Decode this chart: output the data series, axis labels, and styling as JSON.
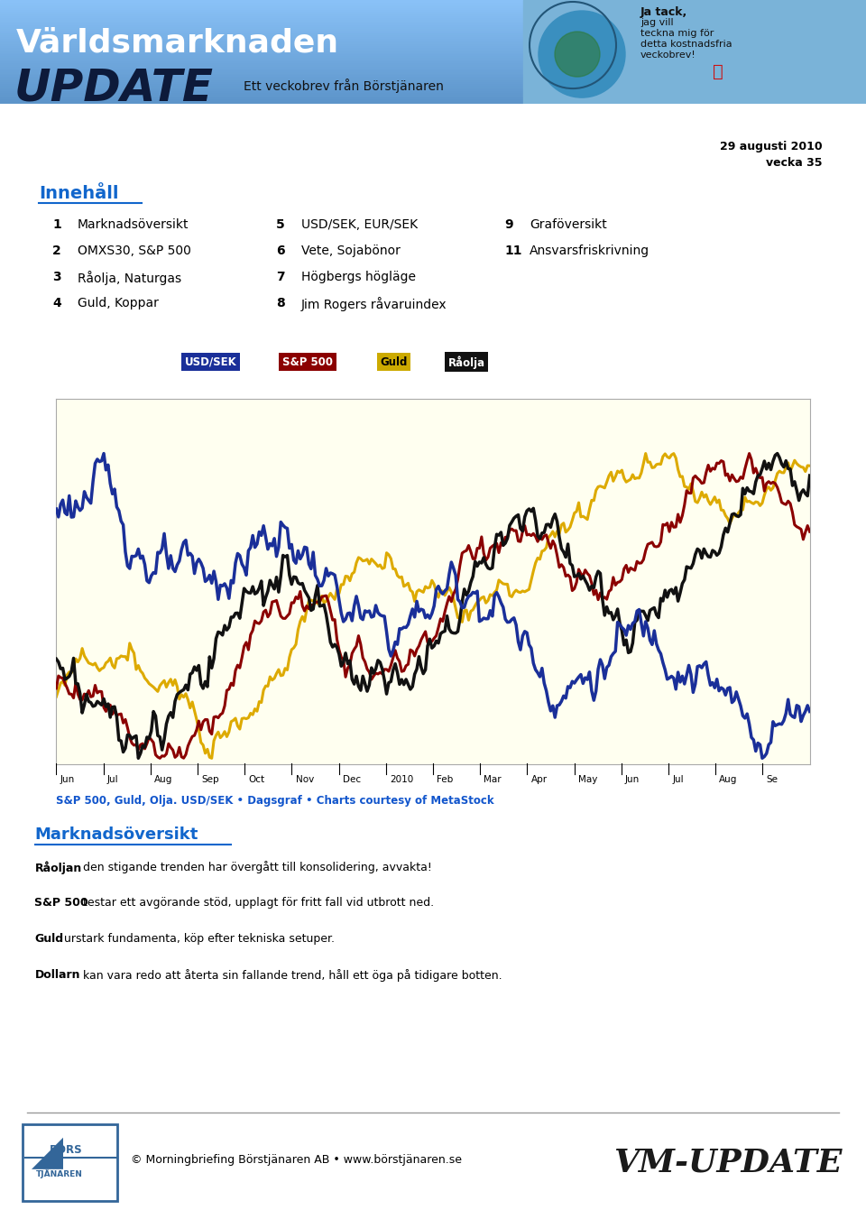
{
  "title_line1": "Världsmarknaden",
  "title_line2": "UPDATE",
  "subtitle": "Ett veckobrev från Börstjänaren",
  "date_text1": "29 augusti 2010",
  "date_text2": "vecka 35",
  "innehall_title": "Innehåll",
  "innehall_col1_nums": [
    "1",
    "2",
    "3",
    "4"
  ],
  "innehall_col1_text": [
    "Marknadsöversikt",
    "OMXS30, S&P 500",
    "Råolja, Naturgas",
    "Guld, Koppar"
  ],
  "innehall_col2_nums": [
    "5",
    "6",
    "7",
    "8"
  ],
  "innehall_col2_text": [
    "USD/SEK, EUR/SEK",
    "Vete, Sojabönor",
    "Högbergs högläge",
    "Jim Rogers råvaruindex"
  ],
  "innehall_col3_nums": [
    "9",
    "11"
  ],
  "innehall_col3_text": [
    "Graföversikt",
    "Ansvarsfriskrivning"
  ],
  "chart_bg": "#fffff0",
  "chart_caption": "S&P 500, Guld, Olja. USD/SEK • Dagsgraf • Charts courtesy of MetaStock",
  "chart_caption_color": "#1155cc",
  "x_labels": [
    "Jun",
    "Jul",
    "Aug",
    "Sep",
    "Oct",
    "Nov",
    "Dec",
    "2010",
    "Feb",
    "Mar",
    "Apr",
    "May",
    "Jun",
    "Jul",
    "Aug",
    "Se"
  ],
  "section_title": "Marknadsöversikt",
  "section_color": "#1166cc",
  "bullets": [
    {
      "bold": "Råoljan",
      "rest": " den stigande trenden har övergått till konsolidering, avvakta!"
    },
    {
      "bold": "S&P 500",
      "rest": " testar ett avgörande stöd, upplagt för fritt fall vid utbrott ned."
    },
    {
      "bold": "Guld",
      "rest": " urstark fundamenta, köp efter tekniska setuper."
    },
    {
      "bold": "Dollarn",
      "rest": " kan vara redo att återta sin fallande trend, håll ett öga på tidigare botten."
    }
  ],
  "footer_text": "© Morningbriefing Börstjänaren AB • www.börstjänaren.se",
  "footer_vm": "VM-UPDATE",
  "legend_items": [
    {
      "label": "USD/SEK",
      "bg": "#1a2f99",
      "fg": "white"
    },
    {
      "label": "S&P 500",
      "bg": "#8b0000",
      "fg": "white"
    },
    {
      "label": "Guld",
      "bg": "#ccaa00",
      "fg": "black"
    },
    {
      "label": "Råolja",
      "bg": "#111111",
      "fg": "white"
    }
  ],
  "lc_usdsek": "#1a2f99",
  "lc_sp500": "#8b0000",
  "lc_guld": "#ddaa00",
  "lc_raolja": "#111111",
  "header_blue": "#5b9bd5",
  "innehall_color": "#1166cc"
}
